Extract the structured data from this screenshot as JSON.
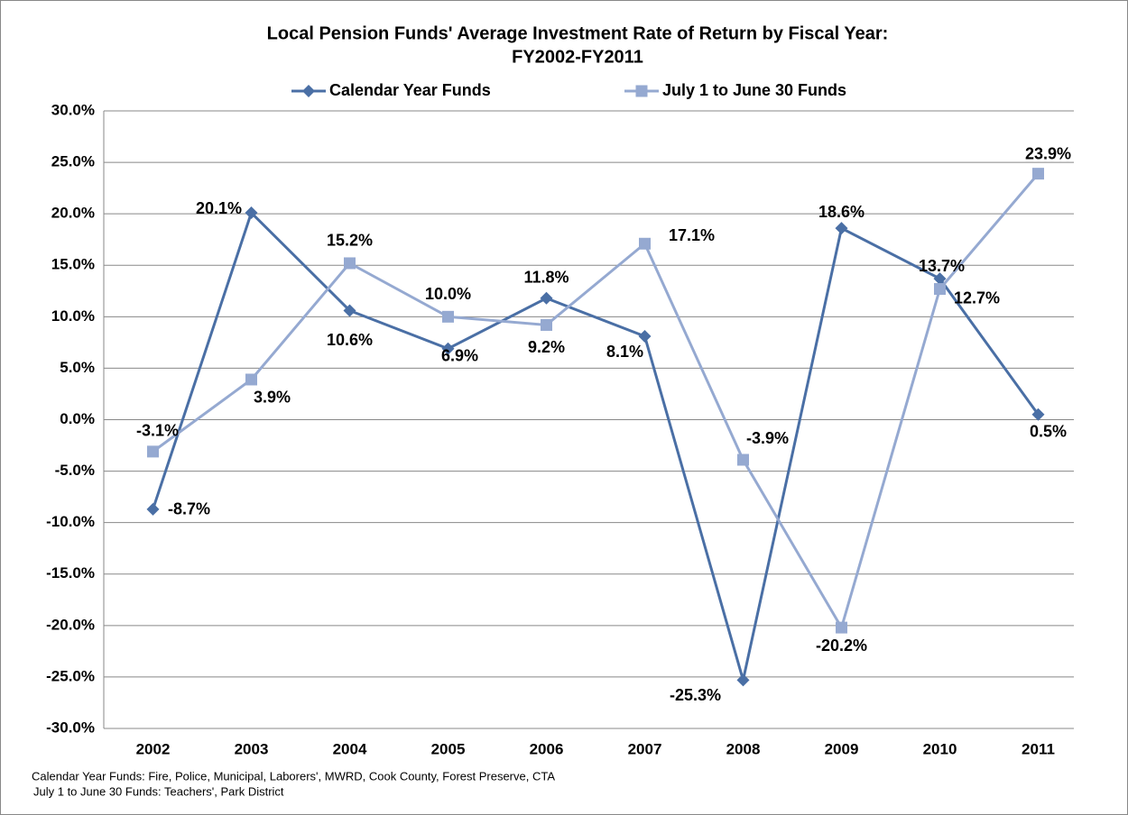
{
  "chart_data": {
    "type": "line",
    "title": "Local Pension Funds' Average Investment Rate of Return by Fiscal Year:",
    "subtitle": "FY2002-FY2011",
    "categories": [
      "2002",
      "2003",
      "2004",
      "2005",
      "2006",
      "2007",
      "2008",
      "2009",
      "2010",
      "2011"
    ],
    "series": [
      {
        "name": "Calendar Year Funds",
        "color": "#4a6fa5",
        "marker": "diamond",
        "values": [
          -8.7,
          20.1,
          10.6,
          6.9,
          11.8,
          8.1,
          -25.3,
          18.6,
          13.7,
          0.5
        ],
        "value_labels": [
          "-8.7%",
          "20.1%",
          "10.6%",
          "6.9%",
          "11.8%",
          "8.1%",
          "-25.3%",
          "18.6%",
          "13.7%",
          "0.5%"
        ]
      },
      {
        "name": "July 1 to June 30 Funds",
        "color": "#95a9d1",
        "marker": "square",
        "values": [
          -3.1,
          3.9,
          15.2,
          10.0,
          9.2,
          17.1,
          -3.9,
          -20.2,
          12.7,
          23.9
        ],
        "value_labels": [
          "-3.1%",
          "3.9%",
          "15.2%",
          "10.0%",
          "9.2%",
          "17.1%",
          "-3.9%",
          "-20.2%",
          "12.7%",
          "23.9%"
        ]
      }
    ],
    "ylim": [
      -30,
      30
    ],
    "yticks": [
      {
        "value": -30,
        "label": "-30.0%"
      },
      {
        "value": -25,
        "label": "-25.0%"
      },
      {
        "value": -20,
        "label": "-20.0%"
      },
      {
        "value": -15,
        "label": "-15.0%"
      },
      {
        "value": -10,
        "label": "-10.0%"
      },
      {
        "value": -5,
        "label": "-5.0%"
      },
      {
        "value": 0,
        "label": "0.0%"
      },
      {
        "value": 5,
        "label": "5.0%"
      },
      {
        "value": 10,
        "label": "10.0%"
      },
      {
        "value": 15,
        "label": "15.0%"
      },
      {
        "value": 20,
        "label": "20.0%"
      },
      {
        "value": 25,
        "label": "25.0%"
      },
      {
        "value": 30,
        "label": "30.0%"
      }
    ],
    "grid": true,
    "legend": "top",
    "notes": [
      "Calendar Year Funds: Fire, Police, Municipal, Laborers', MWRD, Cook County, Forest Preserve, CTA",
      "July 1 to June 30 Funds: Teachers', Park District"
    ]
  }
}
